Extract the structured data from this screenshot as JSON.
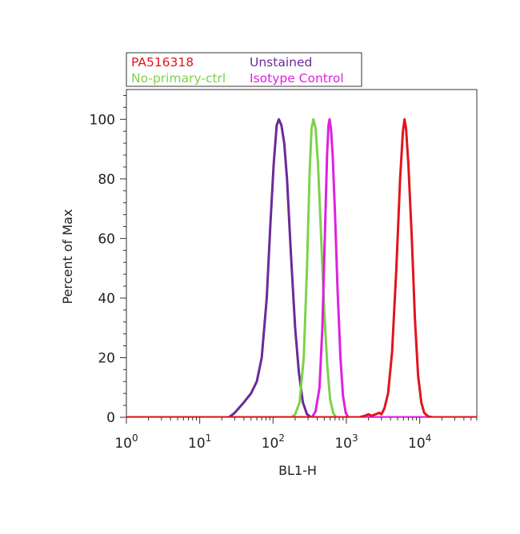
{
  "chart_data": {
    "type": "line",
    "xlabel": "BL1-H",
    "ylabel": "Percent of Max",
    "xscale": "log",
    "xlim": [
      1,
      60000
    ],
    "ylim": [
      0,
      110
    ],
    "x_ticks": [
      {
        "value": 1,
        "base": "10",
        "exp": "0"
      },
      {
        "value": 10,
        "base": "10",
        "exp": "1"
      },
      {
        "value": 100,
        "base": "10",
        "exp": "2"
      },
      {
        "value": 1000,
        "base": "10",
        "exp": "3"
      },
      {
        "value": 10000,
        "base": "10",
        "exp": "4"
      }
    ],
    "y_ticks": [
      0,
      20,
      40,
      60,
      80,
      100
    ],
    "legend_position": "top-left",
    "series": [
      {
        "name": "PA516318",
        "color": "#e0141c",
        "points": [
          [
            1,
            0
          ],
          [
            1500,
            0
          ],
          [
            1800,
            0.5
          ],
          [
            2000,
            1
          ],
          [
            2200,
            0.5
          ],
          [
            2500,
            1
          ],
          [
            2800,
            1.5
          ],
          [
            3000,
            1
          ],
          [
            3300,
            3
          ],
          [
            3700,
            8
          ],
          [
            4200,
            22
          ],
          [
            4800,
            50
          ],
          [
            5400,
            80
          ],
          [
            5900,
            96
          ],
          [
            6200,
            100
          ],
          [
            6500,
            97
          ],
          [
            7000,
            85
          ],
          [
            7800,
            60
          ],
          [
            8600,
            33
          ],
          [
            9500,
            14
          ],
          [
            10500,
            5
          ],
          [
            11500,
            1.5
          ],
          [
            13000,
            0.3
          ],
          [
            15000,
            0
          ],
          [
            60000,
            0
          ]
        ]
      },
      {
        "name": "Unstained",
        "color": "#6a2a9a",
        "points": [
          [
            1,
            0
          ],
          [
            25,
            0
          ],
          [
            30,
            1.5
          ],
          [
            40,
            5
          ],
          [
            50,
            8
          ],
          [
            60,
            12
          ],
          [
            70,
            20
          ],
          [
            82,
            40
          ],
          [
            92,
            65
          ],
          [
            102,
            85
          ],
          [
            112,
            98
          ],
          [
            120,
            100
          ],
          [
            130,
            98
          ],
          [
            142,
            92
          ],
          [
            155,
            80
          ],
          [
            175,
            55
          ],
          [
            200,
            30
          ],
          [
            225,
            15
          ],
          [
            255,
            5
          ],
          [
            290,
            1
          ],
          [
            330,
            0
          ],
          [
            60000,
            0
          ]
        ]
      },
      {
        "name": "No-primary-ctrl",
        "color": "#7dd24a",
        "points": [
          [
            1,
            0
          ],
          [
            180,
            0
          ],
          [
            200,
            1
          ],
          [
            230,
            5
          ],
          [
            262,
            20
          ],
          [
            290,
            50
          ],
          [
            315,
            82
          ],
          [
            335,
            97
          ],
          [
            355,
            100
          ],
          [
            380,
            97
          ],
          [
            410,
            85
          ],
          [
            450,
            62
          ],
          [
            500,
            35
          ],
          [
            550,
            17
          ],
          [
            600,
            6
          ],
          [
            660,
            1.5
          ],
          [
            720,
            0
          ],
          [
            60000,
            0
          ]
        ]
      },
      {
        "name": "Isotype Control",
        "color": "#e020e0",
        "points": [
          [
            1,
            0
          ],
          [
            340,
            0
          ],
          [
            380,
            2
          ],
          [
            430,
            10
          ],
          [
            470,
            30
          ],
          [
            510,
            62
          ],
          [
            545,
            88
          ],
          [
            570,
            98
          ],
          [
            590,
            100
          ],
          [
            615,
            97
          ],
          [
            650,
            88
          ],
          [
            700,
            68
          ],
          [
            760,
            42
          ],
          [
            830,
            20
          ],
          [
            900,
            7
          ],
          [
            980,
            1.5
          ],
          [
            1060,
            0
          ],
          [
            60000,
            0
          ]
        ]
      }
    ]
  }
}
